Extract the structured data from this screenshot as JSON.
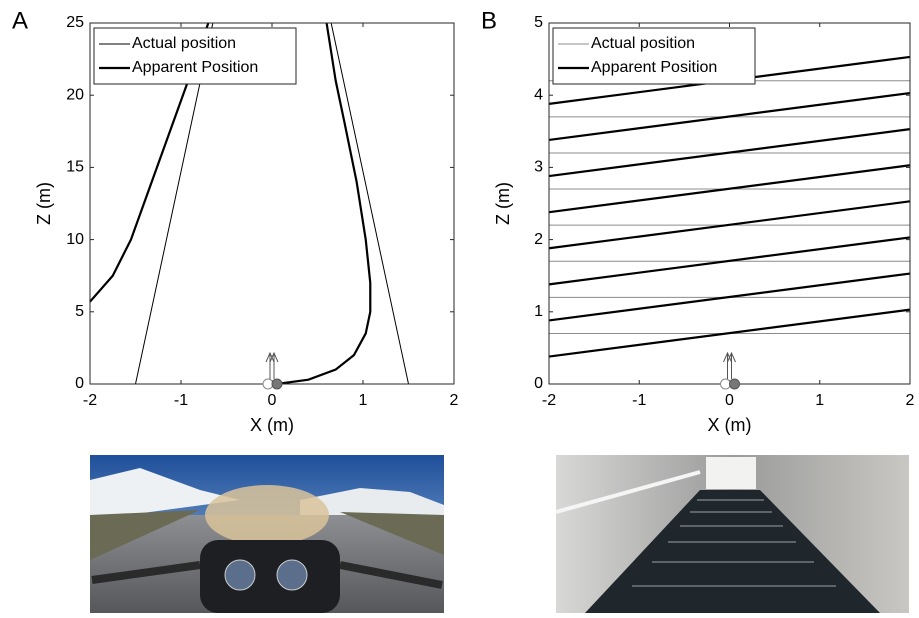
{
  "chart_data": [
    {
      "type": "line",
      "panel": "A",
      "xlabel": "X (m)",
      "ylabel": "Z (m)",
      "xlim": [
        -2,
        2
      ],
      "ylim": [
        0,
        25
      ],
      "xticks": [
        -2,
        -1,
        0,
        1,
        2
      ],
      "yticks": [
        0,
        5,
        10,
        15,
        20,
        25
      ],
      "legend": "upper left",
      "series": [
        {
          "name": "Actual position",
          "color": "#000000",
          "line_width": 1,
          "x": [
            -1.5,
            -0.65,
            null,
            1.5,
            0.65
          ],
          "values": [
            0,
            25,
            null,
            0,
            25
          ]
        },
        {
          "name": "Apparent Position",
          "color": "#000000",
          "line_width": 2.2,
          "x": [
            -2,
            -1.75,
            -1.55,
            -1.35,
            -1.15,
            -0.95,
            -0.78,
            -0.7,
            null,
            0.05,
            0.4,
            0.7,
            0.9,
            1.03,
            1.08,
            1.08,
            1.03,
            0.93,
            0.8,
            0.7,
            0.6
          ],
          "values": [
            5.7,
            7.5,
            10,
            13.5,
            17,
            20.5,
            23.5,
            25,
            null,
            0,
            0.3,
            1,
            2,
            3.5,
            5,
            7,
            10,
            14,
            18,
            21,
            25
          ]
        }
      ]
    },
    {
      "type": "line",
      "panel": "B",
      "xlabel": "X (m)",
      "ylabel": "Z (m)",
      "xlim": [
        -2,
        2
      ],
      "ylim": [
        0,
        5
      ],
      "xticks": [
        -2,
        -1,
        0,
        1,
        2
      ],
      "yticks": [
        0,
        1,
        2,
        3,
        4,
        5
      ],
      "legend": "upper left",
      "series": [
        {
          "name": "Actual position",
          "color": "#8c8c8c",
          "line_width": 1,
          "x": [
            -2,
            2,
            null,
            -2,
            2,
            null,
            -2,
            2,
            null,
            -2,
            2,
            null,
            -2,
            2,
            null,
            -2,
            2,
            null,
            -2,
            2,
            null,
            -2,
            2
          ],
          "values": [
            0.7,
            0.7,
            null,
            1.2,
            1.2,
            null,
            1.7,
            1.7,
            null,
            2.2,
            2.2,
            null,
            2.7,
            2.7,
            null,
            3.2,
            3.2,
            null,
            3.7,
            3.7,
            null,
            4.2,
            4.2
          ]
        },
        {
          "name": "Apparent Position",
          "color": "#000000",
          "line_width": 2.2,
          "x": [
            -2,
            2,
            null,
            -2,
            2,
            null,
            -2,
            2,
            null,
            -2,
            2,
            null,
            -2,
            2,
            null,
            -2,
            2,
            null,
            -2,
            2,
            null,
            -2,
            2
          ],
          "values": [
            0.38,
            1.03,
            null,
            0.88,
            1.53,
            null,
            1.38,
            2.03,
            null,
            1.88,
            2.53,
            null,
            2.38,
            3.03,
            null,
            2.88,
            3.53,
            null,
            3.38,
            4.03,
            null,
            3.88,
            4.53
          ]
        }
      ]
    }
  ]
}
